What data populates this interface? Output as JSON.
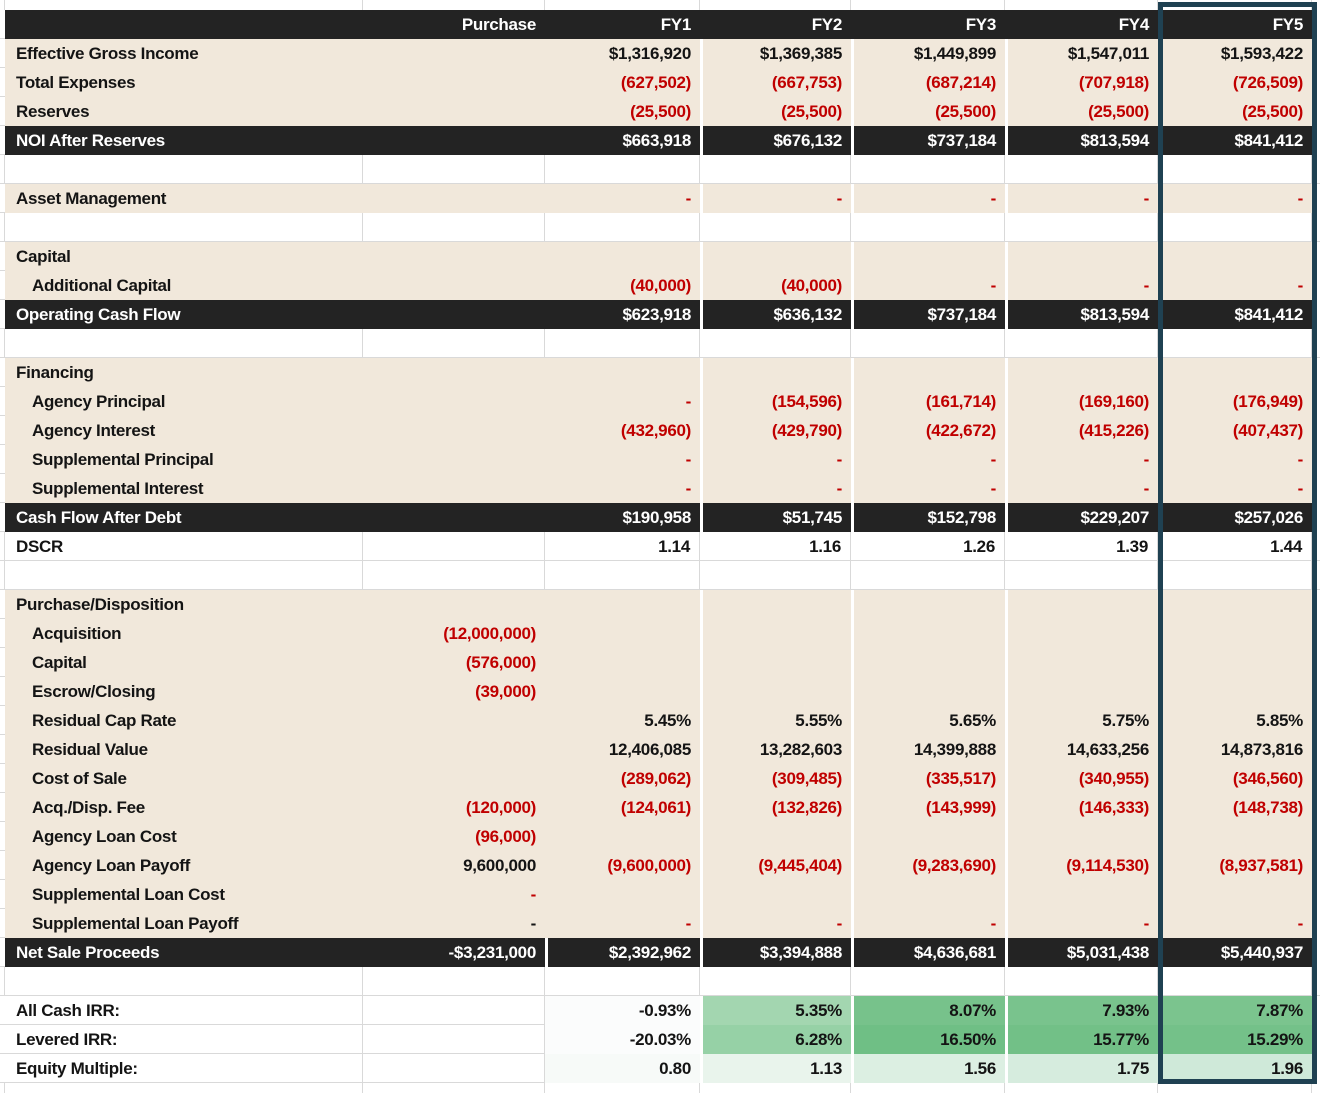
{
  "colors": {
    "beige_cell": "#f1e8db",
    "dark_band": "#232323",
    "negative_red": "#c00000",
    "gridline": "#d9d9d9",
    "selection_border": "#1f4152",
    "irr_green_strong": "#74c189",
    "irr_green_light": "#a3d6b0",
    "irr_green_pale": "#e9f4ec"
  },
  "table": {
    "column_keys": [
      "purchase",
      "fy1",
      "fy2",
      "fy3",
      "fy4",
      "fy5"
    ],
    "rows": [
      {
        "type": "header",
        "label": "",
        "cells": {
          "purchase": "Purchase",
          "fy1": "FY1",
          "fy2": "FY2",
          "fy3": "FY3",
          "fy4": "FY4",
          "fy5": "FY5"
        }
      },
      {
        "type": "data",
        "label": "Effective Gross Income",
        "cells": {
          "fy1": "$1,316,920",
          "fy2": "$1,369,385",
          "fy3": "$1,449,899",
          "fy4": "$1,547,011",
          "fy5": "$1,593,422"
        }
      },
      {
        "type": "data",
        "label": "Total Expenses",
        "cells": {
          "fy1": "(627,502)",
          "fy2": "(667,753)",
          "fy3": "(687,214)",
          "fy4": "(707,918)",
          "fy5": "(726,509)"
        }
      },
      {
        "type": "data",
        "label": "Reserves",
        "cells": {
          "fy1": "(25,500)",
          "fy2": "(25,500)",
          "fy3": "(25,500)",
          "fy4": "(25,500)",
          "fy5": "(25,500)"
        }
      },
      {
        "type": "dark",
        "label": "NOI After Reserves",
        "cells": {
          "fy1": "$663,918",
          "fy2": "$676,132",
          "fy3": "$737,184",
          "fy4": "$813,594",
          "fy5": "$841,412"
        }
      },
      {
        "type": "blank",
        "label": ""
      },
      {
        "type": "data",
        "label": "Asset Management",
        "cells": {
          "fy1": "-",
          "fy2": "-",
          "fy3": "-",
          "fy4": "-",
          "fy5": "-"
        }
      },
      {
        "type": "blank",
        "label": ""
      },
      {
        "type": "data",
        "label": "Capital",
        "cells": {}
      },
      {
        "type": "data",
        "label": "Additional Capital",
        "indent": true,
        "cells": {
          "fy1": "(40,000)",
          "fy2": "(40,000)",
          "fy3": "-",
          "fy4": "-",
          "fy5": "-"
        }
      },
      {
        "type": "dark",
        "label": "Operating Cash Flow",
        "cells": {
          "fy1": "$623,918",
          "fy2": "$636,132",
          "fy3": "$737,184",
          "fy4": "$813,594",
          "fy5": "$841,412"
        }
      },
      {
        "type": "blank",
        "label": ""
      },
      {
        "type": "data",
        "label": "Financing",
        "cells": {}
      },
      {
        "type": "data",
        "label": "Agency Principal",
        "indent": true,
        "cells": {
          "fy1": "-",
          "fy2": "(154,596)",
          "fy3": "(161,714)",
          "fy4": "(169,160)",
          "fy5": "(176,949)"
        }
      },
      {
        "type": "data",
        "label": "Agency Interest",
        "indent": true,
        "cells": {
          "fy1": "(432,960)",
          "fy2": "(429,790)",
          "fy3": "(422,672)",
          "fy4": "(415,226)",
          "fy5": "(407,437)"
        }
      },
      {
        "type": "data",
        "label": "Supplemental Principal",
        "indent": true,
        "cells": {
          "fy1": "-",
          "fy2": "-",
          "fy3": "-",
          "fy4": "-",
          "fy5": "-"
        }
      },
      {
        "type": "data",
        "label": "Supplemental Interest",
        "indent": true,
        "cells": {
          "fy1": "-",
          "fy2": "-",
          "fy3": "-",
          "fy4": "-",
          "fy5": "-"
        }
      },
      {
        "type": "dark",
        "label": "Cash Flow After Debt",
        "cells": {
          "fy1": "$190,958",
          "fy2": "$51,745",
          "fy3": "$152,798",
          "fy4": "$229,207",
          "fy5": "$257,026"
        }
      },
      {
        "type": "white",
        "label": "DSCR",
        "cells": {
          "fy1": "1.14",
          "fy2": "1.16",
          "fy3": "1.26",
          "fy4": "1.39",
          "fy5": "1.44"
        }
      },
      {
        "type": "blank",
        "label": ""
      },
      {
        "type": "data",
        "label": "Purchase/Disposition",
        "cells": {}
      },
      {
        "type": "data",
        "label": "Acquisition",
        "indent": true,
        "cells": {
          "purchase": "(12,000,000)"
        }
      },
      {
        "type": "data",
        "label": "Capital",
        "indent": true,
        "cells": {
          "purchase": "(576,000)"
        }
      },
      {
        "type": "data",
        "label": "Escrow/Closing",
        "indent": true,
        "cells": {
          "purchase": "(39,000)"
        }
      },
      {
        "type": "data",
        "label": "Residual Cap Rate",
        "indent": true,
        "cells": {
          "fy1": "5.45%",
          "fy2": "5.55%",
          "fy3": "5.65%",
          "fy4": "5.75%",
          "fy5": "5.85%"
        }
      },
      {
        "type": "data",
        "label": "Residual Value",
        "indent": true,
        "cells": {
          "fy1": "12,406,085",
          "fy2": "13,282,603",
          "fy3": "14,399,888",
          "fy4": "14,633,256",
          "fy5": "14,873,816"
        }
      },
      {
        "type": "data",
        "label": "Cost of Sale",
        "indent": true,
        "cells": {
          "fy1": "(289,062)",
          "fy2": "(309,485)",
          "fy3": "(335,517)",
          "fy4": "(340,955)",
          "fy5": "(346,560)"
        }
      },
      {
        "type": "data",
        "label": "Acq./Disp. Fee",
        "indent": true,
        "cells": {
          "purchase": "(120,000)",
          "fy1": "(124,061)",
          "fy2": "(132,826)",
          "fy3": "(143,999)",
          "fy4": "(146,333)",
          "fy5": "(148,738)"
        }
      },
      {
        "type": "data",
        "label": "Agency Loan Cost",
        "indent": true,
        "cells": {
          "purchase": "(96,000)"
        }
      },
      {
        "type": "data",
        "label": "Agency Loan Payoff",
        "indent": true,
        "cells": {
          "purchase": "9,600,000",
          "fy1": "(9,600,000)",
          "fy2": "(9,445,404)",
          "fy3": "(9,283,690)",
          "fy4": "(9,114,530)",
          "fy5": "(8,937,581)"
        }
      },
      {
        "type": "data",
        "label": "Supplemental Loan Cost",
        "indent": true,
        "cells": {
          "purchase": "-"
        }
      },
      {
        "type": "data",
        "label": "Supplemental Loan Payoff",
        "indent": true,
        "cells": {
          "purchase": {
            "t": "-",
            "c": "black"
          },
          "fy1": "-",
          "fy2": "-",
          "fy3": "-",
          "fy4": "-",
          "fy5": "-"
        }
      },
      {
        "type": "dark",
        "label": "Net Sale Proceeds",
        "gap_before_fy1": true,
        "cells": {
          "purchase": "-$3,231,000",
          "fy1": "$2,392,962",
          "fy2": "$3,394,888",
          "fy3": "$4,636,681",
          "fy4": "$5,031,438",
          "fy5": "$5,440,937"
        }
      },
      {
        "type": "blank",
        "label": ""
      },
      {
        "type": "irr",
        "label": "All Cash IRR:",
        "cells": {
          "fy1": {
            "t": "-0.93%",
            "bg": "#fbfcfc"
          },
          "fy2": {
            "t": "5.35%",
            "bg": "#a3d6b0"
          },
          "fy3": {
            "t": "8.07%",
            "bg": "#77c28b"
          },
          "fy4": {
            "t": "7.93%",
            "bg": "#79c38d"
          },
          "fy5": {
            "t": "7.87%",
            "bg": "#7bc48e"
          }
        }
      },
      {
        "type": "irr",
        "label": "Levered IRR:",
        "cells": {
          "fy1": {
            "t": "-20.03%",
            "bg": "#fbfcfc"
          },
          "fy2": {
            "t": "6.28%",
            "bg": "#96d1a6"
          },
          "fy3": {
            "t": "16.50%",
            "bg": "#6fbf85"
          },
          "fy4": {
            "t": "15.77%",
            "bg": "#72c087"
          },
          "fy5": {
            "t": "15.29%",
            "bg": "#74c189"
          }
        }
      },
      {
        "type": "irr",
        "label": "Equity Multiple:",
        "cells": {
          "fy1": {
            "t": "0.80",
            "bg": "#f7faf8"
          },
          "fy2": {
            "t": "1.13",
            "bg": "#e9f4ec"
          },
          "fy3": {
            "t": "1.56",
            "bg": "#dcefe2"
          },
          "fy4": {
            "t": "1.75",
            "bg": "#d6ecde"
          },
          "fy5": {
            "t": "1.96",
            "bg": "#cfe9d9"
          }
        }
      }
    ]
  }
}
